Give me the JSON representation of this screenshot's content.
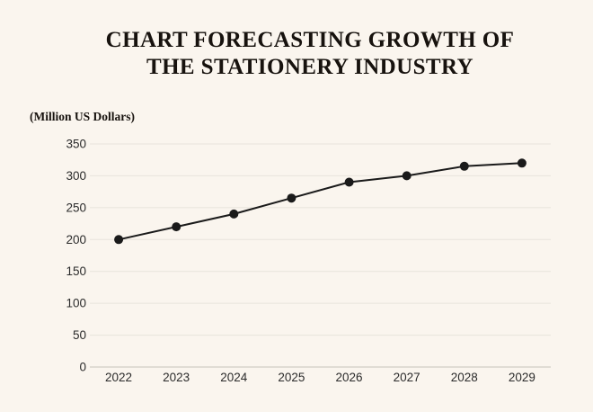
{
  "title_line1": "CHART FORECASTING GROWTH OF",
  "title_line2": "THE STATIONERY INDUSTRY",
  "unit_label": "(Million US Dollars)",
  "colors": {
    "background": "#faf5ee",
    "gridline": "#e8e4dc",
    "axis_line": "#c7c3bb",
    "line": "#1a1a1a",
    "point": "#1a1a1a",
    "title_text": "#17120e",
    "tick_text": "#2b2b2b"
  },
  "chart_data": {
    "type": "line",
    "title": "CHART FORECASTING GROWTH OF THE STATIONERY INDUSTRY",
    "ylabel": "(Million US Dollars)",
    "xlabel": "",
    "categories": [
      "2022",
      "2023",
      "2024",
      "2025",
      "2026",
      "2027",
      "2028",
      "2029"
    ],
    "values": [
      200,
      220,
      240,
      265,
      290,
      300,
      315,
      320
    ],
    "ylim": [
      0,
      350
    ],
    "ytick_step": 50,
    "grid": true,
    "legend": false,
    "marker": "circle"
  }
}
